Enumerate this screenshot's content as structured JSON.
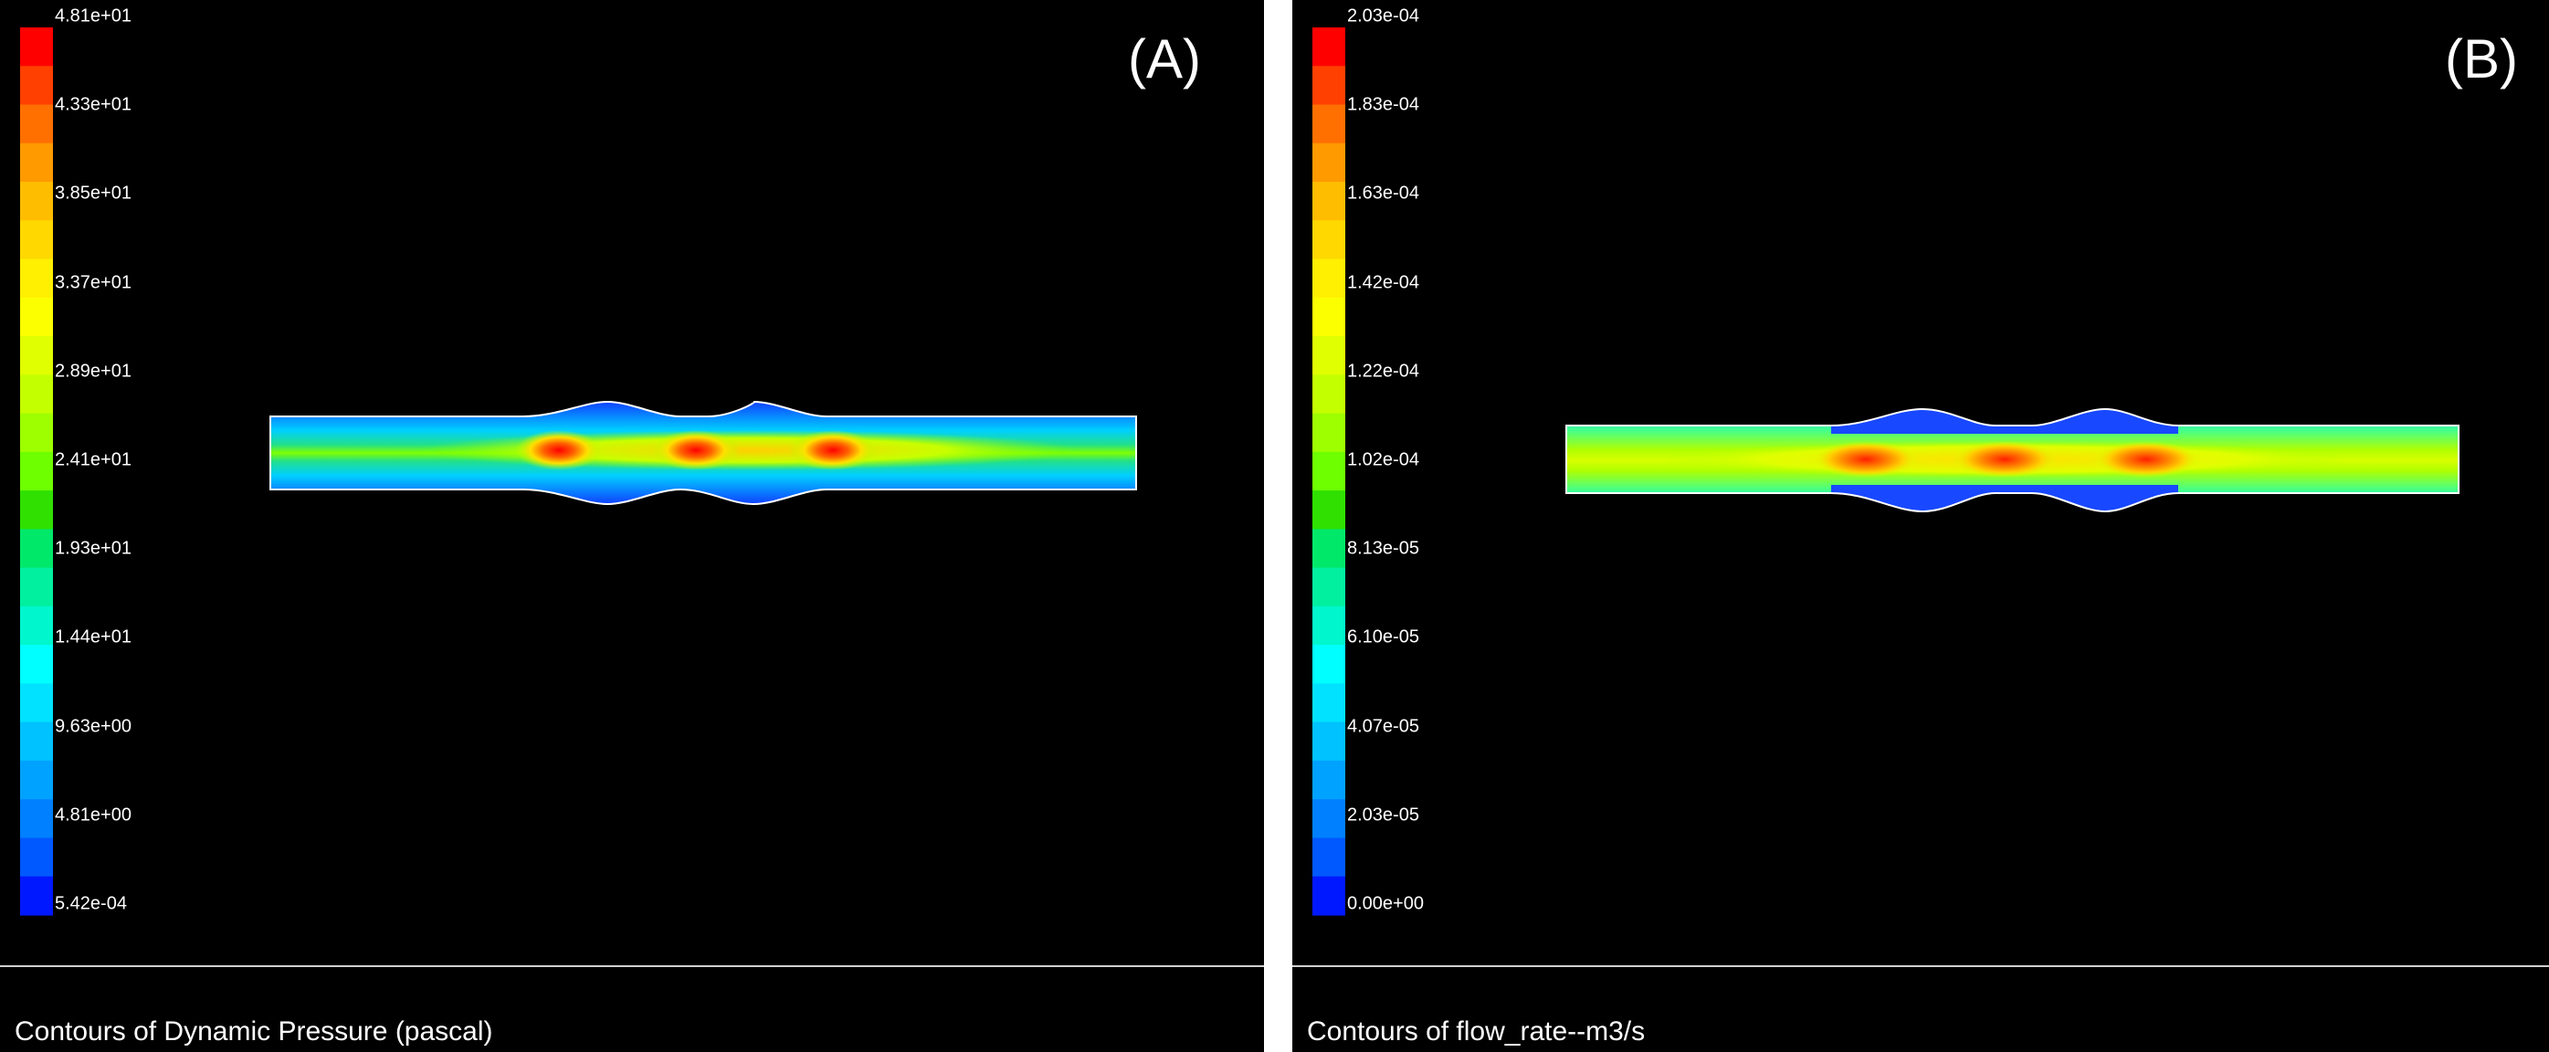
{
  "panels": [
    {
      "id": "A",
      "label": "(A)",
      "caption": "Contours of Dynamic Pressure (pascal)",
      "scale_ticks": [
        "4.81e+01",
        "4.33e+01",
        "3.85e+01",
        "3.37e+01",
        "2.89e+01",
        "2.41e+01",
        "1.93e+01",
        "1.44e+01",
        "9.63e+00",
        "4.81e+00",
        "5.42e-04"
      ]
    },
    {
      "id": "B",
      "label": "(B)",
      "caption": "Contours of flow_rate--m3/s",
      "scale_ticks": [
        "2.03e-04",
        "1.83e-04",
        "1.63e-04",
        "1.42e-04",
        "1.22e-04",
        "1.02e-04",
        "8.13e-05",
        "6.10e-05",
        "4.07e-05",
        "2.03e-05",
        "0.00e+00"
      ]
    }
  ],
  "colors": {
    "colormap": [
      "#ff0000",
      "#ff4000",
      "#ff7000",
      "#ff9a00",
      "#ffbd00",
      "#ffd800",
      "#ffef00",
      "#fbff00",
      "#e0ff00",
      "#c4ff00",
      "#9eff00",
      "#6eff00",
      "#2fe000",
      "#00e86a",
      "#00f0a0",
      "#00f6cc",
      "#00ffff",
      "#00e2ff",
      "#00c2ff",
      "#00a2ff",
      "#0080ff",
      "#0058ff",
      "#0018ff"
    ],
    "background": "#000000",
    "wall": "#ffffff"
  }
}
